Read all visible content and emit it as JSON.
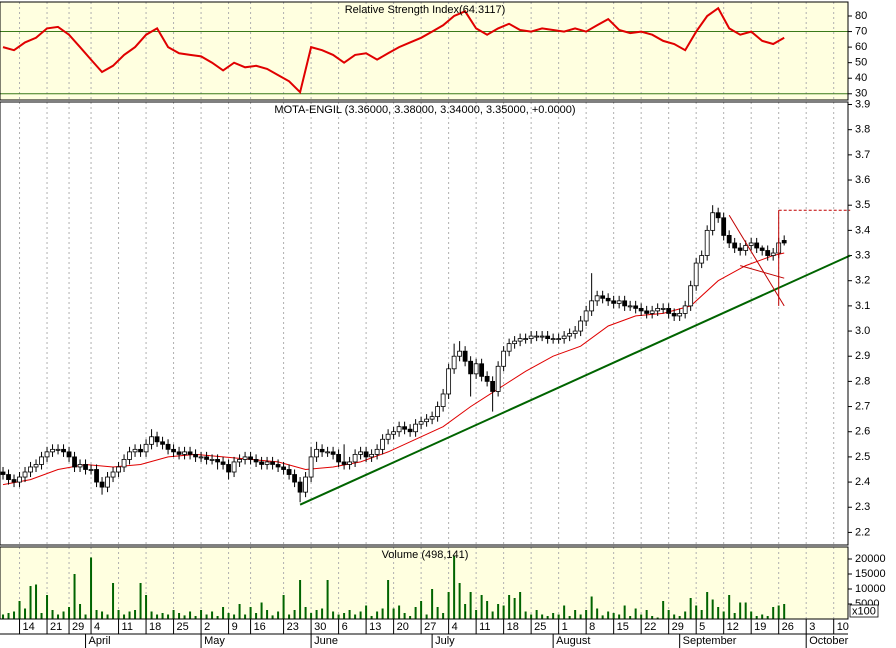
{
  "chart_data": [
    {
      "type": "line",
      "title": "Relative Strength Index(64.3117)",
      "color": "#e00000",
      "x": [
        0,
        2,
        4,
        6,
        8,
        10,
        12,
        14,
        16,
        18,
        20,
        22,
        24,
        26,
        28,
        30,
        32,
        34,
        36,
        38,
        40,
        42,
        44,
        46,
        48,
        50,
        52,
        54,
        56,
        58,
        60,
        62,
        64,
        66,
        68,
        70,
        72,
        74,
        76,
        78,
        80,
        82,
        84,
        86,
        88,
        90,
        92,
        94,
        96,
        98,
        100,
        102,
        104,
        106,
        108,
        110,
        112,
        114,
        116,
        118,
        120,
        122,
        124,
        126,
        128,
        130,
        132,
        134,
        136,
        138,
        140,
        142
      ],
      "values": [
        60,
        58,
        63,
        66,
        72,
        73,
        68,
        60,
        52,
        44,
        48,
        55,
        60,
        68,
        72,
        60,
        56,
        55,
        54,
        50,
        45,
        50,
        47,
        48,
        46,
        42,
        38,
        31,
        60,
        58,
        55,
        50,
        55,
        56,
        52,
        56,
        60,
        63,
        66,
        70,
        74,
        80,
        83,
        72,
        68,
        72,
        75,
        71,
        70,
        72,
        71,
        70,
        72,
        70,
        74,
        78,
        71,
        69,
        70,
        68,
        64,
        62,
        58,
        70,
        80,
        85,
        72,
        68,
        70,
        64,
        62,
        66
      ],
      "ylim": [
        26,
        89
      ],
      "yticks": [
        30,
        40,
        50,
        60,
        70,
        80
      ],
      "levels": [
        70,
        30
      ],
      "level_color": "#3a7a1a",
      "background": "#ffffe0"
    },
    {
      "type": "candlestick",
      "title": "MOTA-ENGIL (3.36000, 3.38000, 3.34000, 3.35000, +0.0000)",
      "color": "#000000",
      "open": [
        2.44,
        2.43,
        2.41,
        2.4,
        2.42,
        2.44,
        2.46,
        2.47,
        2.5,
        2.52,
        2.53,
        2.53,
        2.52,
        2.5,
        2.46,
        2.47,
        2.45,
        2.45,
        2.4,
        2.38,
        2.42,
        2.44,
        2.46,
        2.49,
        2.52,
        2.53,
        2.52,
        2.55,
        2.58,
        2.56,
        2.55,
        2.53,
        2.52,
        2.51,
        2.52,
        2.51,
        2.5,
        2.5,
        2.49,
        2.49,
        2.48,
        2.47,
        2.44,
        2.48,
        2.49,
        2.5,
        2.49,
        2.48,
        2.47,
        2.48,
        2.47,
        2.46,
        2.45,
        2.43,
        2.4,
        2.36,
        2.42,
        2.5,
        2.53,
        2.52,
        2.52,
        2.51,
        2.48,
        2.47,
        2.48,
        2.51,
        2.52,
        2.5,
        2.51,
        2.53,
        2.57,
        2.59,
        2.6,
        2.62,
        2.61,
        2.6,
        2.63,
        2.64,
        2.65,
        2.66,
        2.7,
        2.75,
        2.85,
        2.9,
        2.92,
        2.88,
        2.83,
        2.87,
        2.82,
        2.8,
        2.76,
        2.86,
        2.92,
        2.95,
        2.96,
        2.97,
        2.97,
        2.98,
        2.98,
        2.98,
        2.97,
        2.97,
        2.97,
        2.98,
        2.99,
        3.0,
        3.04,
        3.08,
        3.12,
        3.14,
        3.13,
        3.12,
        3.11,
        3.12,
        3.1,
        3.1,
        3.09,
        3.08,
        3.07,
        3.08,
        3.09,
        3.09,
        3.07,
        3.06,
        3.07,
        3.1,
        3.18,
        3.27,
        3.3,
        3.4,
        3.47,
        3.45,
        3.38,
        3.35,
        3.33,
        3.32,
        3.34,
        3.35,
        3.33,
        3.32,
        3.3,
        3.31,
        3.36
      ],
      "high": [
        2.46,
        2.45,
        2.43,
        2.44,
        2.46,
        2.48,
        2.49,
        2.52,
        2.54,
        2.55,
        2.55,
        2.55,
        2.54,
        2.52,
        2.49,
        2.49,
        2.47,
        2.47,
        2.42,
        2.44,
        2.46,
        2.48,
        2.51,
        2.54,
        2.55,
        2.55,
        2.57,
        2.61,
        2.6,
        2.58,
        2.57,
        2.55,
        2.54,
        2.54,
        2.54,
        2.53,
        2.52,
        2.52,
        2.51,
        2.51,
        2.5,
        2.49,
        2.5,
        2.51,
        2.52,
        2.52,
        2.51,
        2.5,
        2.5,
        2.5,
        2.49,
        2.48,
        2.47,
        2.45,
        2.42,
        2.44,
        2.54,
        2.56,
        2.55,
        2.54,
        2.54,
        2.53,
        2.55,
        2.5,
        2.53,
        2.54,
        2.54,
        2.53,
        2.55,
        2.59,
        2.61,
        2.62,
        2.64,
        2.64,
        2.63,
        2.65,
        2.66,
        2.67,
        2.68,
        2.72,
        2.77,
        2.87,
        2.95,
        2.96,
        2.94,
        2.9,
        2.89,
        2.89,
        2.84,
        2.82,
        2.88,
        2.94,
        2.97,
        2.98,
        2.99,
        2.99,
        3.0,
        3.0,
        3.0,
        3.0,
        2.99,
        2.99,
        3.0,
        3.01,
        3.02,
        3.06,
        3.1,
        3.23,
        3.16,
        3.16,
        3.15,
        3.14,
        3.14,
        3.14,
        3.12,
        3.12,
        3.11,
        3.1,
        3.1,
        3.11,
        3.11,
        3.11,
        3.09,
        3.09,
        3.12,
        3.2,
        3.29,
        3.32,
        3.42,
        3.5,
        3.49,
        3.47,
        3.4,
        3.37,
        3.35,
        3.36,
        3.37,
        3.37,
        3.34,
        3.34,
        3.33,
        3.37,
        3.38
      ],
      "low": [
        2.41,
        2.39,
        2.38,
        2.38,
        2.4,
        2.42,
        2.44,
        2.45,
        2.48,
        2.5,
        2.51,
        2.5,
        2.48,
        2.44,
        2.44,
        2.43,
        2.43,
        2.38,
        2.35,
        2.36,
        2.4,
        2.42,
        2.44,
        2.47,
        2.5,
        2.5,
        2.5,
        2.53,
        2.54,
        2.53,
        2.51,
        2.5,
        2.49,
        2.49,
        2.49,
        2.48,
        2.48,
        2.47,
        2.47,
        2.45,
        2.45,
        2.41,
        2.42,
        2.46,
        2.47,
        2.47,
        2.46,
        2.45,
        2.45,
        2.45,
        2.44,
        2.43,
        2.41,
        2.38,
        2.32,
        2.34,
        2.4,
        2.48,
        2.5,
        2.5,
        2.49,
        2.46,
        2.45,
        2.45,
        2.46,
        2.49,
        2.48,
        2.48,
        2.49,
        2.51,
        2.55,
        2.57,
        2.58,
        2.59,
        2.58,
        2.58,
        2.61,
        2.62,
        2.63,
        2.64,
        2.68,
        2.73,
        2.83,
        2.88,
        2.86,
        2.74,
        2.81,
        2.8,
        2.78,
        2.68,
        2.74,
        2.84,
        2.9,
        2.93,
        2.94,
        2.95,
        2.95,
        2.96,
        2.96,
        2.95,
        2.95,
        2.95,
        2.95,
        2.96,
        2.97,
        2.98,
        3.02,
        3.06,
        3.1,
        3.11,
        3.1,
        3.09,
        3.09,
        3.08,
        3.08,
        3.07,
        3.06,
        3.05,
        3.05,
        3.06,
        3.07,
        3.05,
        3.04,
        3.04,
        3.05,
        3.08,
        3.16,
        3.25,
        3.28,
        3.38,
        3.43,
        3.36,
        3.33,
        3.31,
        3.3,
        3.3,
        3.32,
        3.31,
        3.3,
        3.28,
        3.28,
        3.29,
        3.34
      ],
      "close": [
        2.43,
        2.41,
        2.4,
        2.42,
        2.44,
        2.46,
        2.47,
        2.5,
        2.52,
        2.53,
        2.53,
        2.52,
        2.5,
        2.46,
        2.47,
        2.45,
        2.45,
        2.4,
        2.38,
        2.42,
        2.44,
        2.46,
        2.49,
        2.52,
        2.53,
        2.52,
        2.55,
        2.58,
        2.56,
        2.55,
        2.53,
        2.52,
        2.51,
        2.52,
        2.51,
        2.5,
        2.5,
        2.49,
        2.49,
        2.48,
        2.47,
        2.44,
        2.48,
        2.49,
        2.5,
        2.49,
        2.48,
        2.47,
        2.48,
        2.47,
        2.46,
        2.45,
        2.43,
        2.4,
        2.36,
        2.42,
        2.5,
        2.53,
        2.52,
        2.52,
        2.51,
        2.48,
        2.47,
        2.48,
        2.51,
        2.52,
        2.5,
        2.51,
        2.53,
        2.57,
        2.59,
        2.6,
        2.62,
        2.61,
        2.6,
        2.63,
        2.64,
        2.65,
        2.66,
        2.7,
        2.75,
        2.85,
        2.9,
        2.92,
        2.88,
        2.83,
        2.87,
        2.82,
        2.8,
        2.76,
        2.86,
        2.92,
        2.95,
        2.96,
        2.97,
        2.97,
        2.98,
        2.98,
        2.98,
        2.97,
        2.97,
        2.97,
        2.98,
        2.99,
        3.0,
        3.04,
        3.08,
        3.12,
        3.14,
        3.13,
        3.12,
        3.11,
        3.12,
        3.1,
        3.1,
        3.09,
        3.08,
        3.07,
        3.08,
        3.09,
        3.09,
        3.07,
        3.06,
        3.07,
        3.1,
        3.18,
        3.27,
        3.3,
        3.4,
        3.47,
        3.45,
        3.38,
        3.35,
        3.33,
        3.32,
        3.34,
        3.35,
        3.33,
        3.32,
        3.3,
        3.31,
        3.35,
        3.35
      ],
      "overlays": [
        {
          "type": "line",
          "color": "#e00000",
          "x": [
            0,
            5,
            10,
            15,
            20,
            25,
            30,
            35,
            40,
            45,
            50,
            55,
            60,
            65,
            70,
            75,
            80,
            85,
            90,
            95,
            100,
            105,
            110,
            115,
            120,
            125,
            130,
            135,
            140,
            142
          ],
          "values": [
            2.39,
            2.41,
            2.45,
            2.47,
            2.46,
            2.47,
            2.5,
            2.51,
            2.5,
            2.49,
            2.48,
            2.45,
            2.46,
            2.48,
            2.52,
            2.57,
            2.62,
            2.7,
            2.77,
            2.84,
            2.9,
            2.94,
            3.02,
            3.06,
            3.07,
            3.1,
            3.2,
            3.26,
            3.3,
            3.31
          ]
        }
      ],
      "lines": [
        {
          "x": [
            54,
            154
          ],
          "y": [
            2.31,
            3.3
          ],
          "color": "#006400",
          "width": 2
        },
        {
          "x": [
            132,
            142
          ],
          "y": [
            3.46,
            3.1
          ],
          "color": "#c00000",
          "width": 1
        },
        {
          "x": [
            134,
            142
          ],
          "y": [
            3.26,
            3.21
          ],
          "color": "#c00000",
          "width": 1
        },
        {
          "x": [
            141,
            141
          ],
          "y": [
            3.1,
            3.48
          ],
          "color": "#c00000",
          "width": 1
        },
        {
          "x": [
            141,
            154
          ],
          "y": [
            3.48,
            3.48
          ],
          "color": "#c00000",
          "width": 1,
          "dashed": true
        }
      ],
      "ylim": [
        2.15,
        3.91
      ],
      "yticks": [
        2.2,
        2.3,
        2.4,
        2.5,
        2.6,
        2.7,
        2.8,
        2.9,
        {
          "value": 3,
          "label": "3.0"
        },
        3.1,
        3.2,
        3.3,
        3.4,
        3.5,
        3.6,
        3.7,
        3.8,
        3.9
      ],
      "background": "#ffffff"
    },
    {
      "type": "bar",
      "title": "Volume (498,141)",
      "color": "#006400",
      "unit_label": "x100",
      "values": [
        1500,
        2000,
        2500,
        6000,
        3500,
        11000,
        11500,
        2000,
        8000,
        3000,
        1500,
        2500,
        4000,
        15000,
        5000,
        1500,
        20500,
        3000,
        2500,
        1500,
        12000,
        3000,
        1500,
        2500,
        3000,
        12000,
        8000,
        2500,
        1500,
        2000,
        1500,
        3000,
        2000,
        1200,
        2500,
        1000,
        3000,
        1500,
        2500,
        1000,
        4000,
        2000,
        1500,
        5000,
        1500,
        4000,
        2000,
        5500,
        3000,
        1200,
        2500,
        8000,
        1500,
        3000,
        13000,
        4000,
        2000,
        3000,
        3500,
        13000,
        2500,
        1500,
        2000,
        3000,
        1500,
        2500,
        4500,
        1000,
        2500,
        3500,
        13000,
        3500,
        4500,
        2000,
        1000,
        4000,
        6000,
        1500,
        10000,
        4000,
        2000,
        9000,
        21000,
        12000,
        5000,
        9000,
        3000,
        8000,
        6000,
        2500,
        5000,
        4500,
        8000,
        7000,
        9000,
        2500,
        1500,
        3000,
        1500,
        1000,
        2000,
        1500,
        4500,
        1000,
        3000,
        1500,
        3000,
        7500,
        3500,
        1200,
        2500,
        2000,
        1500,
        4500,
        1000,
        3500,
        1500,
        3000,
        1000,
        500,
        6000,
        3000,
        1500,
        1000,
        2500,
        7000,
        4500,
        3000,
        9000,
        6500,
        4000,
        2500,
        8000,
        2000,
        5500,
        5500,
        2500,
        1000,
        1500,
        1000,
        4000,
        4500,
        5000
      ],
      "ylim": [
        0,
        24000
      ],
      "yticks": [
        5000,
        10000,
        15000,
        20000
      ],
      "xlim": [
        -0.55,
        153.6
      ],
      "xticks": [
        {
          "value": 3,
          "label": "14"
        },
        {
          "value": 8,
          "label": "21"
        },
        {
          "value": 12,
          "label": "29"
        },
        {
          "value": 16,
          "label": "4"
        },
        {
          "value": 21,
          "label": "11"
        },
        {
          "value": 26,
          "label": "18"
        },
        {
          "value": 31,
          "label": "25"
        },
        {
          "value": 36,
          "label": "2"
        },
        {
          "value": 41,
          "label": "9"
        },
        {
          "value": 45,
          "label": "16"
        },
        {
          "value": 51,
          "label": "23"
        },
        {
          "value": 56,
          "label": "30"
        },
        {
          "value": 61,
          "label": "6"
        },
        {
          "value": 66,
          "label": "13"
        },
        {
          "value": 71,
          "label": "20"
        },
        {
          "value": 76,
          "label": "27"
        },
        {
          "value": 81,
          "label": "4"
        },
        {
          "value": 86,
          "label": "11"
        },
        {
          "value": 91,
          "label": "18"
        },
        {
          "value": 96,
          "label": "25"
        },
        {
          "value": 101,
          "label": "1"
        },
        {
          "value": 106,
          "label": "8"
        },
        {
          "value": 111,
          "label": "15"
        },
        {
          "value": 116,
          "label": "22"
        },
        {
          "value": 121,
          "label": "29"
        },
        {
          "value": 126,
          "label": "5"
        },
        {
          "value": 131,
          "label": "12"
        },
        {
          "value": 136,
          "label": "19"
        },
        {
          "value": 141,
          "label": "26"
        },
        {
          "value": 146,
          "label": "3"
        },
        {
          "value": 151,
          "label": "10"
        }
      ],
      "months": [
        {
          "value": 15,
          "label": "April"
        },
        {
          "value": 36,
          "label": "May"
        },
        {
          "value": 56,
          "label": "June"
        },
        {
          "value": 78,
          "label": "July"
        },
        {
          "value": 100,
          "label": "August"
        },
        {
          "value": 123,
          "label": "September"
        },
        {
          "value": 146,
          "label": "October"
        }
      ],
      "background": "#ffffe0"
    }
  ]
}
